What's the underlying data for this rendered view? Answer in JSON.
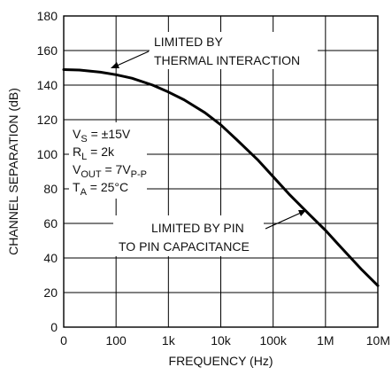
{
  "chart_data": {
    "type": "line",
    "title": "",
    "xlabel": "FREQUENCY (Hz)",
    "ylabel": "CHANNEL SEPARATION (dB)",
    "x_scale": "log",
    "x_ticks": [
      "0",
      "100",
      "1k",
      "10k",
      "100k",
      "1M",
      "10M"
    ],
    "xlim_log10": [
      1,
      7
    ],
    "ylim": [
      0,
      180
    ],
    "y_ticks": [
      "0",
      "20",
      "40",
      "60",
      "80",
      "100",
      "120",
      "140",
      "160",
      "180"
    ],
    "grid": true,
    "series": [
      {
        "x": [
          10,
          20,
          50,
          100,
          200,
          500,
          1000,
          2000,
          5000,
          10000,
          20000,
          50000,
          100000,
          200000,
          500000,
          1000000,
          2000000,
          5000000,
          10000000
        ],
        "y": [
          149,
          148.7,
          147.5,
          146,
          144,
          140,
          136,
          131.5,
          124,
          117,
          108.5,
          97,
          87,
          77,
          65,
          56,
          46,
          33,
          24
        ]
      }
    ],
    "conditions": [
      {
        "main": "V",
        "sub": "S",
        "rest": " = ±15V"
      },
      {
        "main": "R",
        "sub": "L",
        "rest": " = 2k"
      },
      {
        "main": "V",
        "sub": "OUT",
        "rest": " = 7V",
        "sub2": "P-P"
      },
      {
        "main": "T",
        "sub": "A",
        "rest": " = 25°C"
      }
    ],
    "annotations": [
      {
        "lines": [
          "LIMITED BY",
          "THERMAL INTERACTION"
        ]
      },
      {
        "lines": [
          "LIMITED BY PIN",
          "TO PIN CAPACITANCE"
        ]
      }
    ]
  }
}
